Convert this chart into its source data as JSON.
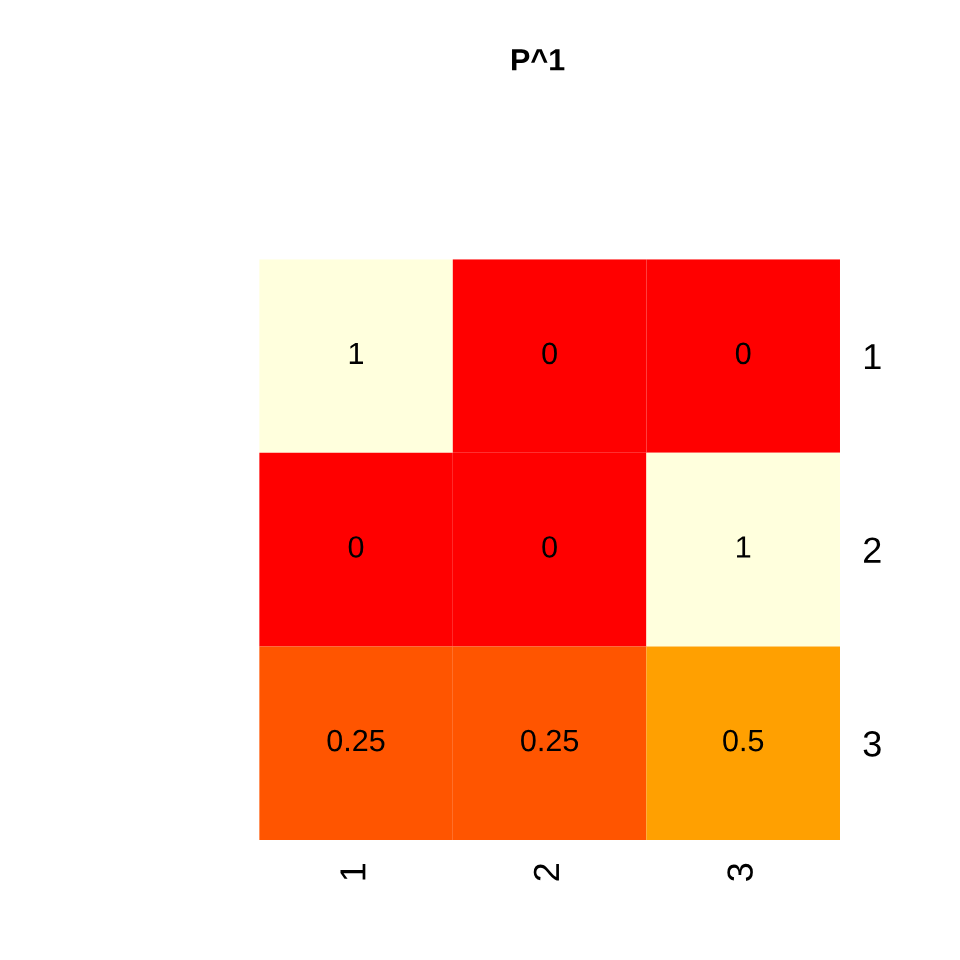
{
  "chart_data": {
    "type": "heatmap",
    "title": "P^1",
    "categories": [
      "1",
      "2",
      "3"
    ],
    "y_categories": [
      "1",
      "2",
      "3"
    ],
    "cells": [
      [
        1,
        0,
        0
      ],
      [
        0,
        0,
        1
      ],
      [
        0.25,
        0.25,
        0.5
      ]
    ],
    "data_labels": true
  }
}
